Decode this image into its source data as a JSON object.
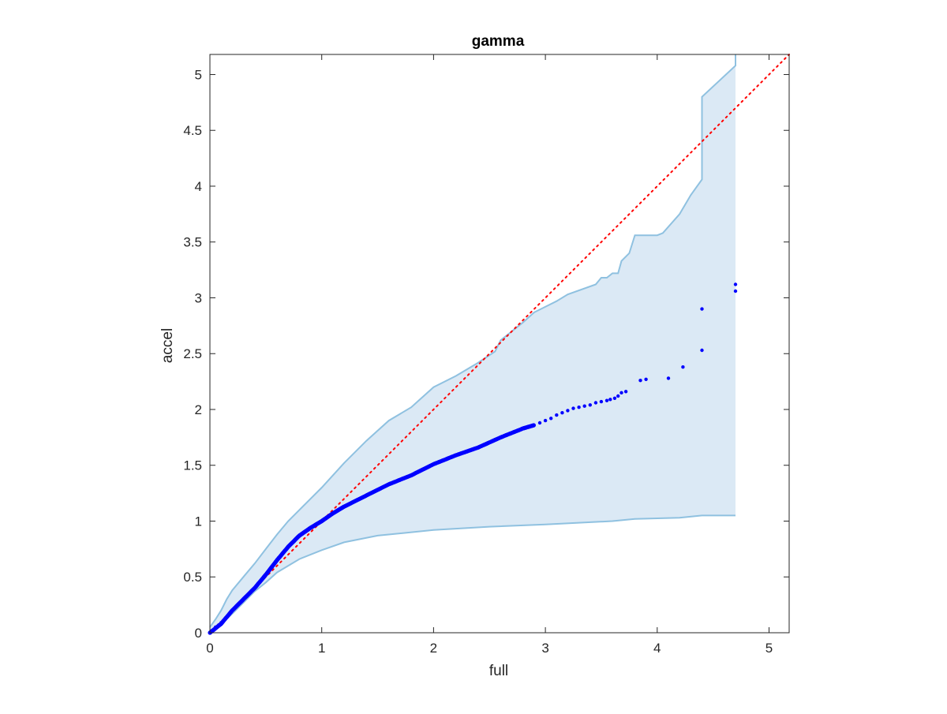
{
  "chart_data": {
    "type": "scatter",
    "title": "gamma",
    "xlabel": "full",
    "ylabel": "accel",
    "xlim": [
      0,
      5.18
    ],
    "ylim": [
      0,
      5.18
    ],
    "xticks": [
      0,
      1,
      2,
      3,
      4,
      5
    ],
    "yticks": [
      0,
      0.5,
      1,
      1.5,
      2,
      2.5,
      3,
      3.5,
      4,
      4.5,
      5
    ],
    "xtick_labels": [
      "0",
      "1",
      "2",
      "3",
      "4",
      "5"
    ],
    "ytick_labels": [
      "0",
      "0.5",
      "1",
      "1.5",
      "2",
      "2.5",
      "3",
      "3.5",
      "4",
      "4.5",
      "5"
    ],
    "box": true,
    "grid": false,
    "reference_line": {
      "style": "dotted",
      "color": "#ff0000",
      "x": [
        0,
        5.18
      ],
      "y": [
        0,
        5.18
      ]
    },
    "band": {
      "color": "#dbe9f5",
      "edge_color": "#8fc1e0",
      "upper": {
        "x": [
          0,
          0.05,
          0.1,
          0.15,
          0.2,
          0.3,
          0.4,
          0.5,
          0.6,
          0.7,
          0.8,
          0.9,
          1.0,
          1.2,
          1.4,
          1.6,
          1.8,
          2.0,
          2.2,
          2.4,
          2.55,
          2.6,
          2.8,
          2.9,
          3.1,
          3.2,
          3.45,
          3.5,
          3.55,
          3.6,
          3.65,
          3.68,
          3.75,
          3.8,
          4.0,
          4.05,
          4.2,
          4.3,
          4.4,
          4.4,
          4.7,
          4.7
        ],
        "y": [
          0.05,
          0.12,
          0.2,
          0.3,
          0.38,
          0.5,
          0.62,
          0.75,
          0.88,
          1.0,
          1.1,
          1.2,
          1.3,
          1.52,
          1.72,
          1.9,
          2.02,
          2.2,
          2.3,
          2.42,
          2.52,
          2.62,
          2.78,
          2.87,
          2.97,
          3.03,
          3.12,
          3.18,
          3.18,
          3.22,
          3.22,
          3.33,
          3.4,
          3.56,
          3.56,
          3.58,
          3.75,
          3.92,
          4.06,
          4.8,
          5.08,
          5.18
        ]
      },
      "lower": {
        "x": [
          4.7,
          4.4,
          4.2,
          3.8,
          3.6,
          3.0,
          2.5,
          2.0,
          1.5,
          1.2,
          1.0,
          0.8,
          0.6,
          0.5,
          0.4,
          0.3,
          0.2,
          0.1,
          0.05,
          0
        ],
        "y": [
          1.05,
          1.05,
          1.03,
          1.02,
          1.0,
          0.97,
          0.95,
          0.92,
          0.87,
          0.81,
          0.74,
          0.66,
          0.54,
          0.45,
          0.37,
          0.27,
          0.17,
          0.08,
          0.03,
          0
        ]
      }
    },
    "series": [
      {
        "color": "#0000ff",
        "curve": [
          [
            0,
            0
          ],
          [
            0.1,
            0.08
          ],
          [
            0.2,
            0.2
          ],
          [
            0.3,
            0.3
          ],
          [
            0.4,
            0.4
          ],
          [
            0.5,
            0.52
          ],
          [
            0.6,
            0.65
          ],
          [
            0.7,
            0.77
          ],
          [
            0.8,
            0.87
          ],
          [
            0.9,
            0.94
          ],
          [
            1.0,
            1.0
          ],
          [
            1.1,
            1.07
          ],
          [
            1.2,
            1.13
          ],
          [
            1.4,
            1.23
          ],
          [
            1.6,
            1.33
          ],
          [
            1.8,
            1.41
          ],
          [
            2.0,
            1.51
          ],
          [
            2.2,
            1.59
          ],
          [
            2.4,
            1.66
          ],
          [
            2.6,
            1.75
          ],
          [
            2.8,
            1.83
          ],
          [
            2.9,
            1.86
          ]
        ],
        "x": [
          0.02,
          0.05,
          0.08,
          0.1,
          2.95,
          3.0,
          3.05,
          3.1,
          3.15,
          3.2,
          3.25,
          3.3,
          3.35,
          3.4,
          3.45,
          3.5,
          3.55,
          3.58,
          3.62,
          3.65,
          3.68,
          3.72,
          3.85,
          3.9,
          4.1,
          4.23,
          4.4,
          4.4,
          4.7,
          4.7
        ],
        "y": [
          0.02,
          0.05,
          0.07,
          0.09,
          1.88,
          1.9,
          1.92,
          1.95,
          1.97,
          1.99,
          2.01,
          2.02,
          2.03,
          2.04,
          2.06,
          2.07,
          2.08,
          2.09,
          2.1,
          2.12,
          2.15,
          2.16,
          2.26,
          2.27,
          2.28,
          2.38,
          2.53,
          2.9,
          3.06,
          3.12
        ]
      }
    ]
  }
}
